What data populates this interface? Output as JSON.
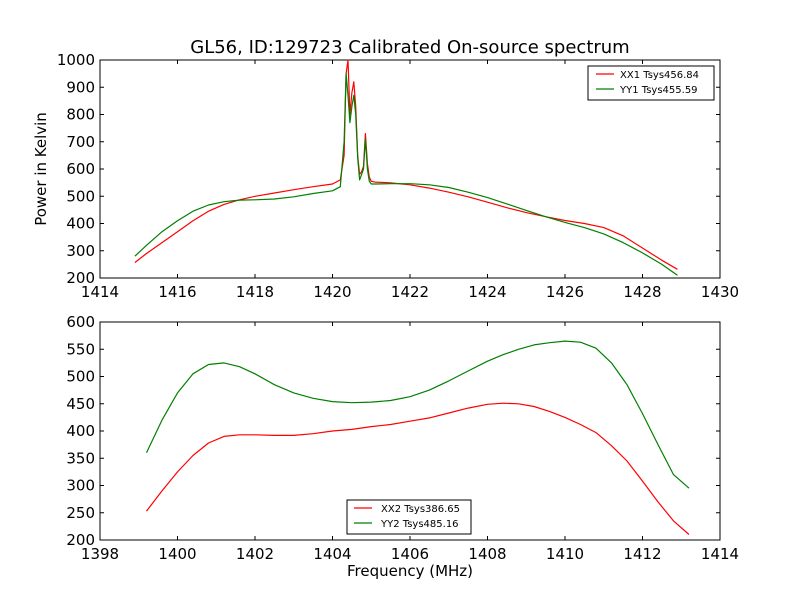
{
  "chart_data": [
    {
      "type": "line",
      "title": "GL56, ID:129723 Calibrated On-source spectrum",
      "xlabel": "",
      "ylabel": "Power in Kelvin",
      "xlim": [
        1414,
        1430
      ],
      "ylim": [
        200,
        1000
      ],
      "xticks": [
        "1414",
        "1416",
        "1418",
        "1420",
        "1422",
        "1424",
        "1426",
        "1428",
        "1430"
      ],
      "yticks": [
        "200",
        "300",
        "400",
        "500",
        "600",
        "700",
        "800",
        "900",
        "1000"
      ],
      "legend_position": "top-right",
      "grid": false,
      "series": [
        {
          "name": "XX1 Tsys456.84",
          "color": "#ff0000",
          "x": [
            1414.9,
            1415.2,
            1415.6,
            1416.0,
            1416.4,
            1416.8,
            1417.2,
            1417.6,
            1418.0,
            1418.5,
            1419.0,
            1419.5,
            1420.0,
            1420.2,
            1420.3,
            1420.35,
            1420.4,
            1420.45,
            1420.5,
            1420.55,
            1420.6,
            1420.65,
            1420.7,
            1420.75,
            1420.8,
            1420.85,
            1420.9,
            1420.95,
            1421.0,
            1421.1,
            1421.5,
            1422.0,
            1422.5,
            1423.0,
            1423.5,
            1424.0,
            1424.5,
            1425.0,
            1425.5,
            1426.0,
            1426.5,
            1427.0,
            1427.5,
            1428.0,
            1428.5,
            1428.9
          ],
          "y": [
            257,
            290,
            330,
            370,
            410,
            445,
            470,
            487,
            500,
            512,
            524,
            535,
            545,
            560,
            650,
            950,
            1000,
            800,
            880,
            920,
            830,
            650,
            580,
            590,
            610,
            730,
            620,
            570,
            555,
            552,
            549,
            542,
            530,
            515,
            498,
            478,
            458,
            440,
            425,
            411,
            400,
            385,
            355,
            310,
            265,
            232
          ]
        },
        {
          "name": "YY1 Tsys455.59",
          "color": "#008000",
          "x": [
            1414.9,
            1415.2,
            1415.6,
            1416.0,
            1416.4,
            1416.8,
            1417.2,
            1417.6,
            1418.0,
            1418.5,
            1419.0,
            1419.5,
            1420.0,
            1420.2,
            1420.3,
            1420.35,
            1420.4,
            1420.45,
            1420.5,
            1420.55,
            1420.6,
            1420.65,
            1420.7,
            1420.75,
            1420.8,
            1420.85,
            1420.9,
            1420.95,
            1421.0,
            1421.1,
            1421.5,
            1422.0,
            1422.5,
            1423.0,
            1423.5,
            1424.0,
            1424.5,
            1425.0,
            1425.5,
            1426.0,
            1426.5,
            1427.0,
            1427.5,
            1428.0,
            1428.5,
            1428.9
          ],
          "y": [
            280,
            320,
            370,
            410,
            445,
            468,
            480,
            486,
            487,
            490,
            498,
            510,
            520,
            535,
            700,
            950,
            870,
            770,
            830,
            870,
            800,
            640,
            560,
            580,
            600,
            710,
            600,
            555,
            545,
            545,
            546,
            546,
            542,
            532,
            515,
            495,
            472,
            448,
            425,
            404,
            385,
            362,
            330,
            292,
            250,
            210
          ]
        }
      ]
    },
    {
      "type": "line",
      "title": "",
      "xlabel": "Frequency (MHz)",
      "ylabel": "",
      "xlim": [
        1398,
        1414
      ],
      "ylim": [
        200,
        600
      ],
      "xticks": [
        "1398",
        "1400",
        "1402",
        "1404",
        "1406",
        "1408",
        "1410",
        "1412",
        "1414"
      ],
      "yticks": [
        "200",
        "250",
        "300",
        "350",
        "400",
        "450",
        "500",
        "550",
        "600"
      ],
      "legend_position": "bottom-center",
      "grid": false,
      "series": [
        {
          "name": "XX2 Tsys386.65",
          "color": "#ff0000",
          "x": [
            1399.2,
            1399.6,
            1400.0,
            1400.4,
            1400.8,
            1401.2,
            1401.6,
            1402.0,
            1402.5,
            1403.0,
            1403.5,
            1404.0,
            1404.5,
            1405.0,
            1405.5,
            1406.0,
            1406.5,
            1407.0,
            1407.5,
            1408.0,
            1408.4,
            1408.8,
            1409.2,
            1409.6,
            1410.0,
            1410.4,
            1410.8,
            1411.2,
            1411.6,
            1412.0,
            1412.4,
            1412.8,
            1413.2
          ],
          "y": [
            253,
            290,
            325,
            355,
            378,
            390,
            393,
            393,
            392,
            392,
            395,
            400,
            403,
            408,
            412,
            418,
            424,
            433,
            442,
            449,
            451,
            450,
            445,
            436,
            425,
            412,
            397,
            373,
            345,
            308,
            270,
            235,
            210
          ]
        },
        {
          "name": "YY2 Tsys485.16",
          "color": "#008000",
          "x": [
            1399.2,
            1399.6,
            1400.0,
            1400.4,
            1400.8,
            1401.2,
            1401.6,
            1402.0,
            1402.5,
            1403.0,
            1403.5,
            1404.0,
            1404.5,
            1405.0,
            1405.5,
            1406.0,
            1406.5,
            1407.0,
            1407.5,
            1408.0,
            1408.4,
            1408.8,
            1409.2,
            1409.6,
            1410.0,
            1410.4,
            1410.8,
            1411.2,
            1411.6,
            1412.0,
            1412.4,
            1412.8,
            1413.2
          ],
          "y": [
            360,
            420,
            470,
            505,
            522,
            525,
            518,
            505,
            485,
            470,
            460,
            454,
            452,
            453,
            456,
            463,
            475,
            492,
            510,
            528,
            540,
            550,
            558,
            562,
            565,
            563,
            552,
            525,
            485,
            432,
            375,
            320,
            295
          ]
        }
      ]
    }
  ]
}
